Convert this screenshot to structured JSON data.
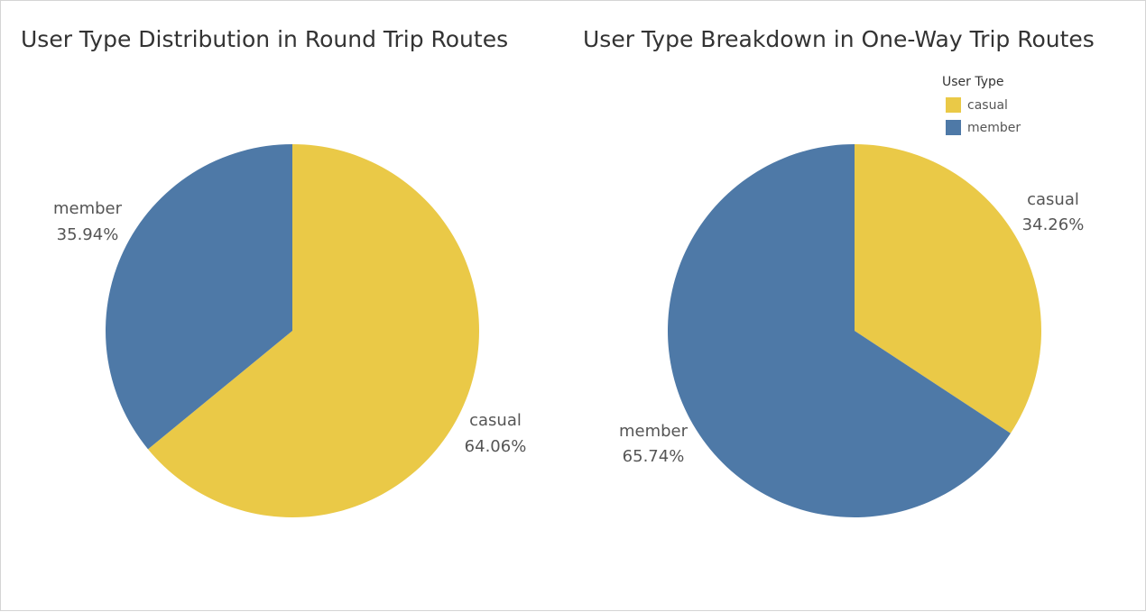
{
  "colors": {
    "casual": "#eac947",
    "member": "#4e79a7"
  },
  "legend": {
    "title": "User Type",
    "items": [
      {
        "label": "casual",
        "color": "#eac947"
      },
      {
        "label": "member",
        "color": "#4e79a7"
      }
    ]
  },
  "chart_data": [
    {
      "type": "pie",
      "title": "User Type Distribution in Round Trip Routes",
      "slices": [
        {
          "category": "casual",
          "value": 64.06,
          "label": "64.06%"
        },
        {
          "category": "member",
          "value": 35.94,
          "label": "35.94%"
        }
      ]
    },
    {
      "type": "pie",
      "title": "User Type Breakdown in One-Way Trip Routes",
      "slices": [
        {
          "category": "casual",
          "value": 34.26,
          "label": "34.26%"
        },
        {
          "category": "member",
          "value": 65.74,
          "label": "65.74%"
        }
      ],
      "legend_position": "top-right"
    }
  ]
}
